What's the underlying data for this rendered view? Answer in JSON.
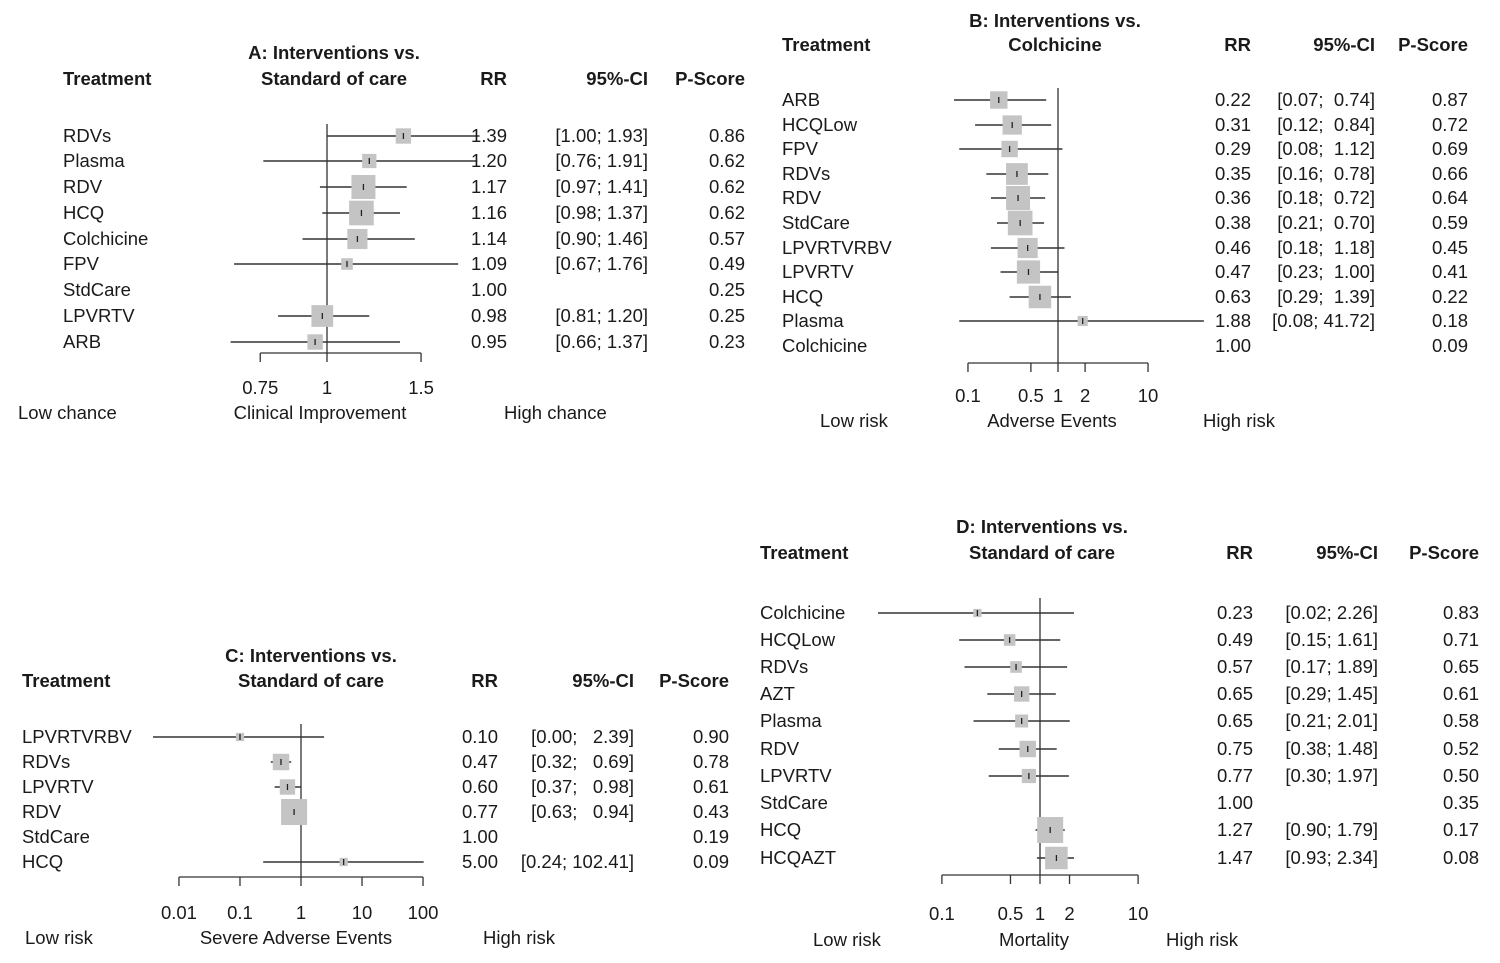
{
  "chart_data": [
    {
      "id": "A",
      "type": "forest",
      "title_lines": [
        "A: Interventions vs.",
        "Standard of care"
      ],
      "columns": {
        "treatment": "Treatment",
        "rr": "RR",
        "ci": "95%-CI",
        "pscore": "P-Score"
      },
      "xscale": "log",
      "xlim": [
        0.75,
        1.5
      ],
      "xticks": [
        0.75,
        1,
        1.5
      ],
      "xtick_labels": [
        "0.75",
        "1",
        "1.5"
      ],
      "xlabel": "Clinical Improvement",
      "left_label": "Low chance",
      "right_label": "High chance",
      "reference": 1,
      "rows": [
        {
          "treatment": "RDVs",
          "rr": 1.39,
          "lower": 1.0,
          "upper": 1.93,
          "rr_text": "1.39",
          "ci_text": "[1.00; 1.93]",
          "pscore": "0.86",
          "weight": 0.35
        },
        {
          "treatment": "Plasma",
          "rr": 1.2,
          "lower": 0.76,
          "upper": 1.91,
          "rr_text": "1.20",
          "ci_text": "[0.76; 1.91]",
          "pscore": "0.62",
          "weight": 0.3
        },
        {
          "treatment": "RDV",
          "rr": 1.17,
          "lower": 0.97,
          "upper": 1.41,
          "rr_text": "1.17",
          "ci_text": "[0.97; 1.41]",
          "pscore": "0.62",
          "weight": 0.85
        },
        {
          "treatment": "HCQ",
          "rr": 1.16,
          "lower": 0.98,
          "upper": 1.37,
          "rr_text": "1.16",
          "ci_text": "[0.98; 1.37]",
          "pscore": "0.62",
          "weight": 0.9
        },
        {
          "treatment": "Colchicine",
          "rr": 1.14,
          "lower": 0.9,
          "upper": 1.46,
          "rr_text": "1.14",
          "ci_text": "[0.90; 1.46]",
          "pscore": "0.57",
          "weight": 0.6
        },
        {
          "treatment": "FPV",
          "rr": 1.09,
          "lower": 0.67,
          "upper": 1.76,
          "rr_text": "1.09",
          "ci_text": "[0.67; 1.76]",
          "pscore": "0.49",
          "weight": 0.2
        },
        {
          "treatment": "StdCare",
          "rr": 1.0,
          "lower": null,
          "upper": null,
          "rr_text": "1.00",
          "ci_text": "",
          "pscore": "0.25",
          "weight": 0
        },
        {
          "treatment": "LPVRTV",
          "rr": 0.98,
          "lower": 0.81,
          "upper": 1.2,
          "rr_text": "0.98",
          "ci_text": "[0.81; 1.20]",
          "pscore": "0.25",
          "weight": 0.7
        },
        {
          "treatment": "ARB",
          "rr": 0.95,
          "lower": 0.66,
          "upper": 1.37,
          "rr_text": "0.95",
          "ci_text": "[0.66; 1.37]",
          "pscore": "0.23",
          "weight": 0.35
        }
      ]
    },
    {
      "id": "B",
      "type": "forest",
      "title_lines": [
        "B: Interventions vs.",
        "Colchicine"
      ],
      "columns": {
        "treatment": "Treatment",
        "rr": "RR",
        "ci": "95%-CI",
        "pscore": "P-Score"
      },
      "xscale": "log",
      "xlim": [
        0.1,
        10
      ],
      "xticks": [
        0.1,
        0.5,
        1,
        2,
        10
      ],
      "xtick_labels": [
        "0.1",
        "0.5",
        "1",
        "2",
        "10"
      ],
      "xlabel": "Adverse Events",
      "left_label": "Low risk",
      "right_label": "High risk",
      "reference": 1,
      "rows": [
        {
          "treatment": "ARB",
          "rr": 0.22,
          "lower": 0.07,
          "upper": 0.74,
          "rr_text": "0.22",
          "ci_text": "[0.07;  0.74]",
          "pscore": "0.87",
          "weight": 0.45
        },
        {
          "treatment": "HCQLow",
          "rr": 0.31,
          "lower": 0.12,
          "upper": 0.84,
          "rr_text": "0.31",
          "ci_text": "[0.12;  0.84]",
          "pscore": "0.72",
          "weight": 0.55
        },
        {
          "treatment": "FPV",
          "rr": 0.29,
          "lower": 0.08,
          "upper": 1.12,
          "rr_text": "0.29",
          "ci_text": "[0.08;  1.12]",
          "pscore": "0.69",
          "weight": 0.4
        },
        {
          "treatment": "RDVs",
          "rr": 0.35,
          "lower": 0.16,
          "upper": 0.78,
          "rr_text": "0.35",
          "ci_text": "[0.16;  0.78]",
          "pscore": "0.66",
          "weight": 0.7
        },
        {
          "treatment": "RDV",
          "rr": 0.36,
          "lower": 0.18,
          "upper": 0.72,
          "rr_text": "0.36",
          "ci_text": "[0.18;  0.72]",
          "pscore": "0.64",
          "weight": 0.85
        },
        {
          "treatment": "StdCare",
          "rr": 0.38,
          "lower": 0.21,
          "upper": 0.7,
          "rr_text": "0.38",
          "ci_text": "[0.21;  0.70]",
          "pscore": "0.59",
          "weight": 0.9
        },
        {
          "treatment": "LPVRTVRBV",
          "rr": 0.46,
          "lower": 0.18,
          "upper": 1.18,
          "rr_text": "0.46",
          "ci_text": "[0.18;  1.18]",
          "pscore": "0.45",
          "weight": 0.6
        },
        {
          "treatment": "LPVRTV",
          "rr": 0.47,
          "lower": 0.23,
          "upper": 1.0,
          "rr_text": "0.47",
          "ci_text": "[0.23;  1.00]",
          "pscore": "0.41",
          "weight": 0.8
        },
        {
          "treatment": "HCQ",
          "rr": 0.63,
          "lower": 0.29,
          "upper": 1.39,
          "rr_text": "0.63",
          "ci_text": "[0.29;  1.39]",
          "pscore": "0.22",
          "weight": 0.75
        },
        {
          "treatment": "Plasma",
          "rr": 1.88,
          "lower": 0.08,
          "upper": 41.72,
          "rr_text": "1.88",
          "ci_text": "[0.08; 41.72]",
          "pscore": "0.18",
          "weight": 0.15
        },
        {
          "treatment": "Colchicine",
          "rr": 1.0,
          "lower": null,
          "upper": null,
          "rr_text": "1.00",
          "ci_text": "",
          "pscore": "0.09",
          "weight": 0
        }
      ]
    },
    {
      "id": "C",
      "type": "forest",
      "title_lines": [
        "C: Interventions vs.",
        "Standard of care"
      ],
      "columns": {
        "treatment": "Treatment",
        "rr": "RR",
        "ci": "95%-CI",
        "pscore": "P-Score"
      },
      "xscale": "log",
      "xlim": [
        0.01,
        100
      ],
      "xticks": [
        0.01,
        0.1,
        1,
        10,
        100
      ],
      "xtick_labels": [
        "0.01",
        "0.1",
        "1",
        "10",
        "100"
      ],
      "xlabel": "Severe Adverse Events",
      "left_label": "Low risk",
      "right_label": "High risk",
      "reference": 1,
      "rows": [
        {
          "treatment": "LPVRTVRBV",
          "rr": 0.1,
          "lower": 0.0,
          "upper": 2.39,
          "rr_text": "0.10",
          "ci_text": "[0.00;   2.39]",
          "pscore": "0.90",
          "weight": 0.1
        },
        {
          "treatment": "RDVs",
          "rr": 0.47,
          "lower": 0.32,
          "upper": 0.69,
          "rr_text": "0.47",
          "ci_text": "[0.32;   0.69]",
          "pscore": "0.78",
          "weight": 0.4
        },
        {
          "treatment": "LPVRTV",
          "rr": 0.6,
          "lower": 0.37,
          "upper": 0.98,
          "rr_text": "0.60",
          "ci_text": "[0.37;   0.98]",
          "pscore": "0.61",
          "weight": 0.35
        },
        {
          "treatment": "RDV",
          "rr": 0.77,
          "lower": 0.63,
          "upper": 0.94,
          "rr_text": "0.77",
          "ci_text": "[0.63;   0.94]",
          "pscore": "0.43",
          "weight": 1.0
        },
        {
          "treatment": "StdCare",
          "rr": 1.0,
          "lower": null,
          "upper": null,
          "rr_text": "1.00",
          "ci_text": "",
          "pscore": "0.19",
          "weight": 0
        },
        {
          "treatment": "HCQ",
          "rr": 5.0,
          "lower": 0.24,
          "upper": 102.41,
          "rr_text": "5.00",
          "ci_text": "[0.24; 102.41]",
          "pscore": "0.09",
          "weight": 0.1
        }
      ]
    },
    {
      "id": "D",
      "type": "forest",
      "title_lines": [
        "D: Interventions vs.",
        "Standard of care"
      ],
      "columns": {
        "treatment": "Treatment",
        "rr": "RR",
        "ci": "95%-CI",
        "pscore": "P-Score"
      },
      "xscale": "log",
      "xlim": [
        0.1,
        10
      ],
      "xticks": [
        0.1,
        0.5,
        1,
        2,
        10
      ],
      "xtick_labels": [
        "0.1",
        "0.5",
        "1",
        "2",
        "10"
      ],
      "xlabel": "Mortality",
      "left_label": "Low risk",
      "right_label": "High risk",
      "reference": 1,
      "rows": [
        {
          "treatment": "Colchicine",
          "rr": 0.23,
          "lower": 0.02,
          "upper": 2.26,
          "rr_text": "0.23",
          "ci_text": "[0.02; 2.26]",
          "pscore": "0.83",
          "weight": 0.1
        },
        {
          "treatment": "HCQLow",
          "rr": 0.49,
          "lower": 0.15,
          "upper": 1.61,
          "rr_text": "0.49",
          "ci_text": "[0.15; 1.61]",
          "pscore": "0.71",
          "weight": 0.2
        },
        {
          "treatment": "RDVs",
          "rr": 0.57,
          "lower": 0.17,
          "upper": 1.89,
          "rr_text": "0.57",
          "ci_text": "[0.17; 1.89]",
          "pscore": "0.65",
          "weight": 0.2
        },
        {
          "treatment": "AZT",
          "rr": 0.65,
          "lower": 0.29,
          "upper": 1.45,
          "rr_text": "0.65",
          "ci_text": "[0.29; 1.45]",
          "pscore": "0.61",
          "weight": 0.35
        },
        {
          "treatment": "Plasma",
          "rr": 0.65,
          "lower": 0.21,
          "upper": 2.01,
          "rr_text": "0.65",
          "ci_text": "[0.21; 2.01]",
          "pscore": "0.58",
          "weight": 0.25
        },
        {
          "treatment": "RDV",
          "rr": 0.75,
          "lower": 0.38,
          "upper": 1.48,
          "rr_text": "0.75",
          "ci_text": "[0.38; 1.48]",
          "pscore": "0.52",
          "weight": 0.4
        },
        {
          "treatment": "LPVRTV",
          "rr": 0.77,
          "lower": 0.3,
          "upper": 1.97,
          "rr_text": "0.77",
          "ci_text": "[0.30; 1.97]",
          "pscore": "0.50",
          "weight": 0.3
        },
        {
          "treatment": "StdCare",
          "rr": 1.0,
          "lower": null,
          "upper": null,
          "rr_text": "1.00",
          "ci_text": "",
          "pscore": "0.35",
          "weight": 0
        },
        {
          "treatment": "HCQ",
          "rr": 1.27,
          "lower": 0.9,
          "upper": 1.79,
          "rr_text": "1.27",
          "ci_text": "[0.90; 1.79]",
          "pscore": "0.17",
          "weight": 1.0
        },
        {
          "treatment": "HCQAZT",
          "rr": 1.47,
          "lower": 0.93,
          "upper": 2.34,
          "rr_text": "1.47",
          "ci_text": "[0.93; 2.34]",
          "pscore": "0.08",
          "weight": 0.75
        }
      ]
    }
  ],
  "colors": {
    "square": "#c4c4c4",
    "line": "#333333",
    "text": "#1a1a1a"
  }
}
